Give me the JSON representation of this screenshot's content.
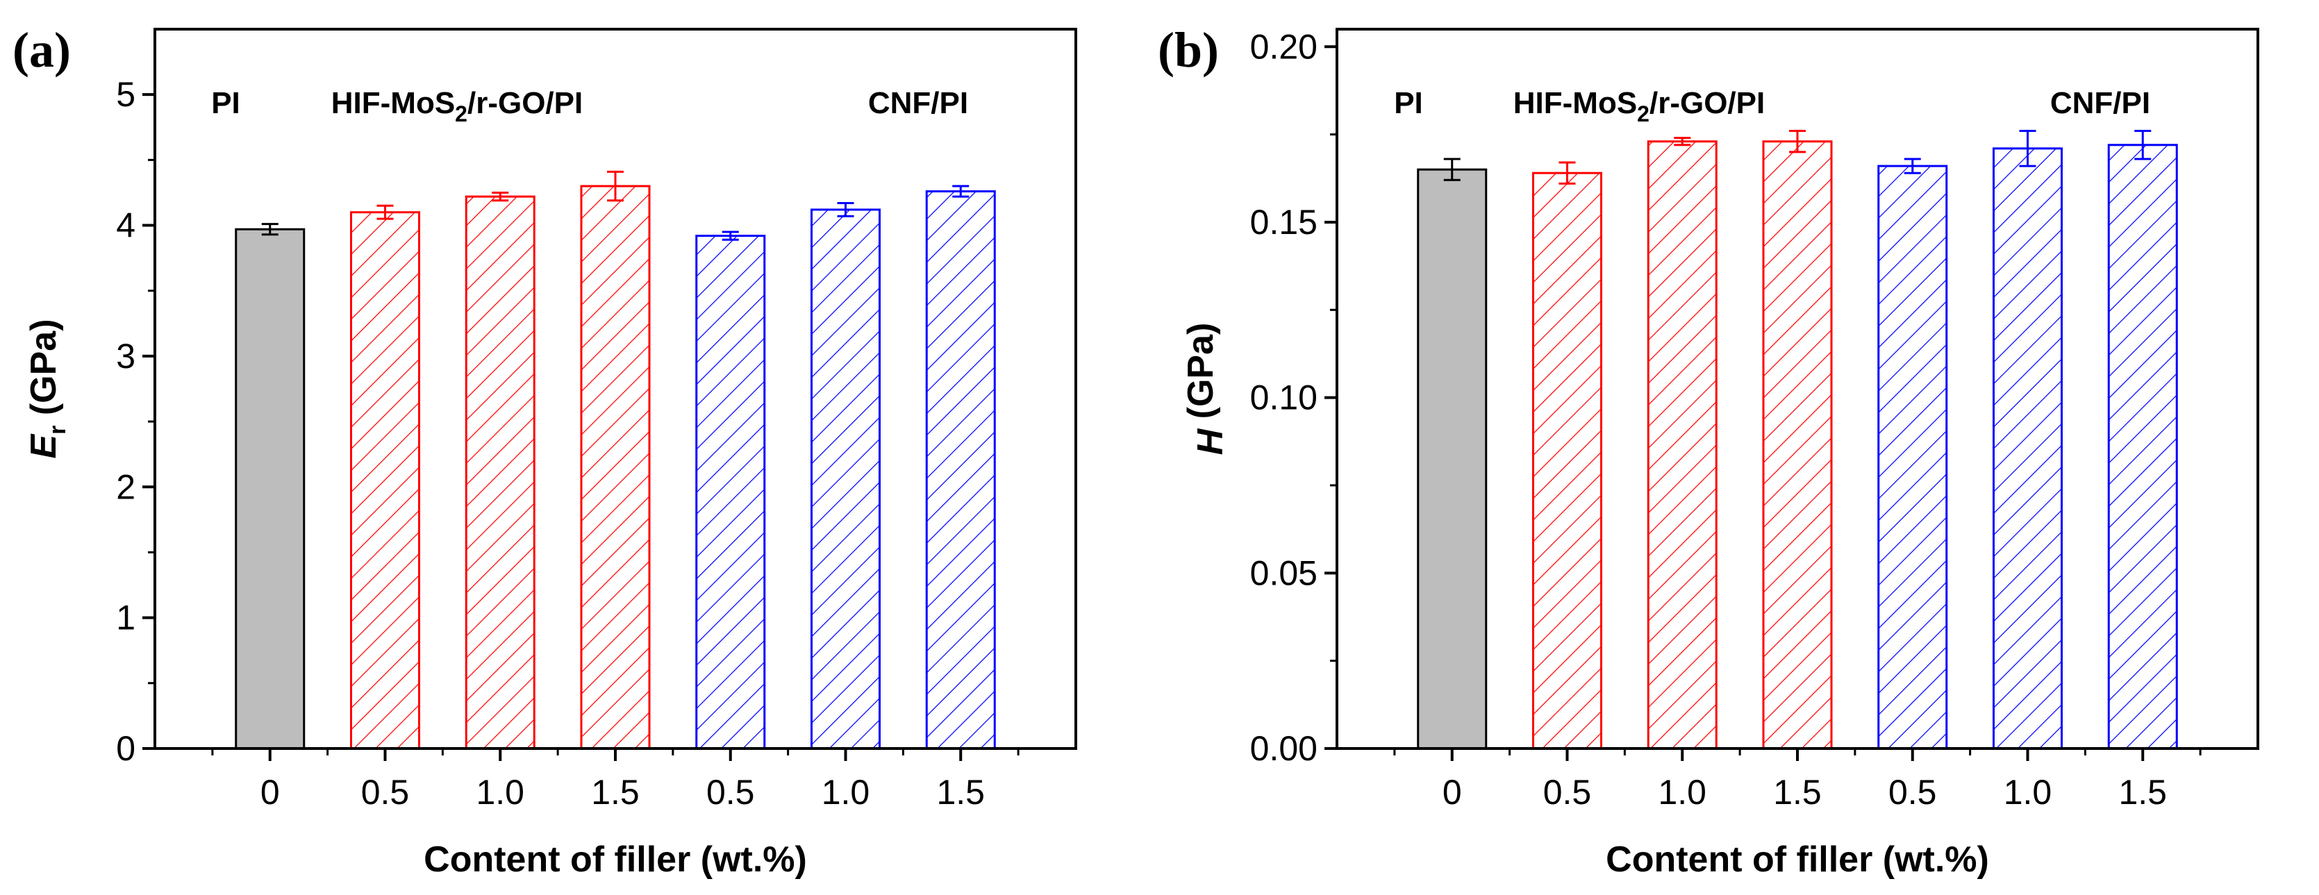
{
  "colors": {
    "pi_fill": "#bdbdbd",
    "pi_edge": "#000000",
    "hif": "#ff0000",
    "cnf": "#0000ff",
    "axis": "#000000"
  },
  "chart_data": [
    {
      "type": "bar",
      "panel_label": "(a)",
      "categories": [
        "0",
        "0.5",
        "1.0",
        "1.5",
        "0.5",
        "1.0",
        "1.5"
      ],
      "groups": [
        "PI",
        "HIF-MoS2/r-GO/PI",
        "HIF-MoS2/r-GO/PI",
        "HIF-MoS2/r-GO/PI",
        "CNF/PI",
        "CNF/PI",
        "CNF/PI"
      ],
      "values": [
        3.97,
        4.1,
        4.22,
        4.3,
        3.92,
        4.12,
        4.26
      ],
      "errors": [
        0.04,
        0.05,
        0.03,
        0.11,
        0.03,
        0.05,
        0.04
      ],
      "ylim": [
        0,
        5.5
      ],
      "yticks": [
        0,
        1,
        2,
        3,
        4,
        5
      ],
      "ytick_labels": [
        "0",
        "1",
        "2",
        "3",
        "4",
        "5"
      ],
      "xlabel": "Content of filler (wt.%)",
      "ylabel_symbol": "E",
      "ylabel_subscript": "r",
      "ylabel_unit": " (GPa)",
      "group_labels": [
        {
          "text": "PI",
          "color": "#000000"
        },
        {
          "text": "HIF-MoS",
          "sub": "2",
          "text_after": "/r-GO/PI",
          "color": "#ff0000"
        },
        {
          "text": "CNF/PI",
          "color": "#0000ff"
        }
      ]
    },
    {
      "type": "bar",
      "panel_label": "(b)",
      "categories": [
        "0",
        "0.5",
        "1.0",
        "1.5",
        "0.5",
        "1.0",
        "1.5"
      ],
      "groups": [
        "PI",
        "HIF-MoS2/r-GO/PI",
        "HIF-MoS2/r-GO/PI",
        "HIF-MoS2/r-GO/PI",
        "CNF/PI",
        "CNF/PI",
        "CNF/PI"
      ],
      "values": [
        0.165,
        0.164,
        0.173,
        0.173,
        0.166,
        0.171,
        0.172
      ],
      "errors": [
        0.003,
        0.003,
        0.001,
        0.003,
        0.002,
        0.005,
        0.004
      ],
      "ylim": [
        0,
        0.205
      ],
      "yticks": [
        0,
        0.05,
        0.1,
        0.15,
        0.2
      ],
      "ytick_labels": [
        "0.00",
        "0.05",
        "0.10",
        "0.15",
        "0.20"
      ],
      "xlabel": "Content of filler (wt.%)",
      "ylabel_symbol": "H",
      "ylabel_subscript": "",
      "ylabel_unit": " (GPa)",
      "group_labels": [
        {
          "text": "PI",
          "color": "#000000"
        },
        {
          "text": "HIF-MoS",
          "sub": "2",
          "text_after": "/r-GO/PI",
          "color": "#ff0000"
        },
        {
          "text": "CNF/PI",
          "color": "#0000ff"
        }
      ]
    }
  ]
}
